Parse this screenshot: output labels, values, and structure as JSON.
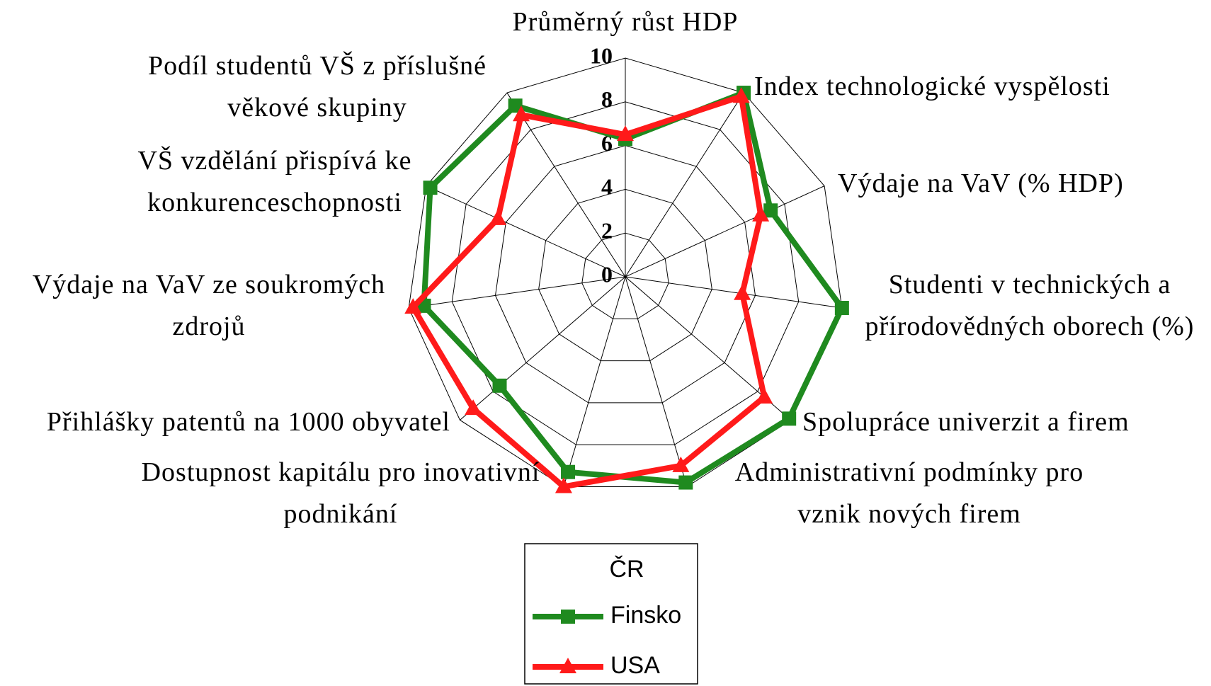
{
  "chart_data": {
    "type": "radar",
    "categories": [
      "Průměrný růst HDP",
      "Index technologické vyspělosti",
      "Výdaje na VaV (% HDP)",
      "Studenti v technických a přírodovědných oborech (%)",
      "Spolupráce univerzit a firem",
      "Administrativní podmínky pro vznik nových firem",
      "Dostupnost kapitálu pro inovativní podnikání",
      "Přihlášky patentů na 1000 obyvatel",
      "Výdaje na VaV ze soukromých zdrojů",
      "VŠ vzdělání přispívá ke konkurenceschopnosti",
      "Podíl studentů VŠ z příslušné věkové skupiny"
    ],
    "series": [
      {
        "name": "Finsko",
        "color": "#1f8a1f",
        "marker": "square",
        "values": [
          6.3,
          10,
          7.3,
          10,
          9.9,
          9.8,
          9.3,
          7.6,
          9.3,
          9.8,
          9.3
        ]
      },
      {
        "name": "USA",
        "color": "#ff1a1a",
        "marker": "triangle",
        "values": [
          6.5,
          9.8,
          6.8,
          5.4,
          8.4,
          9.0,
          10,
          9.2,
          9.8,
          6.4,
          8.8
        ]
      }
    ],
    "ylim": [
      0,
      10
    ],
    "yticks": [
      0,
      2,
      4,
      6,
      8,
      10
    ],
    "grid": true,
    "legend": {
      "title": "ČR",
      "position": "bottom"
    }
  }
}
